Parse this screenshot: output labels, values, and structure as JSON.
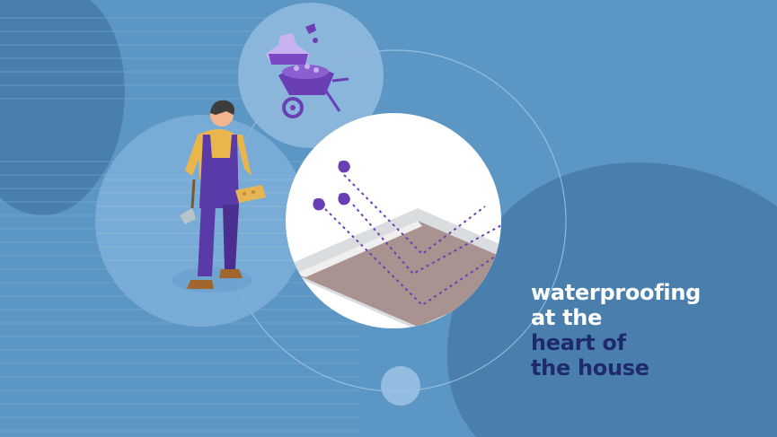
{
  "tagline": {
    "line1": "waterproofing",
    "line2": "at the",
    "line3": "heart of",
    "line4": "the house"
  },
  "colors": {
    "background": "#5c96c4",
    "background_dark": "#4a80ad",
    "accent_purple": "#6a3fb5",
    "text_light": "#ffffff",
    "text_dark": "#1f2a6e"
  }
}
